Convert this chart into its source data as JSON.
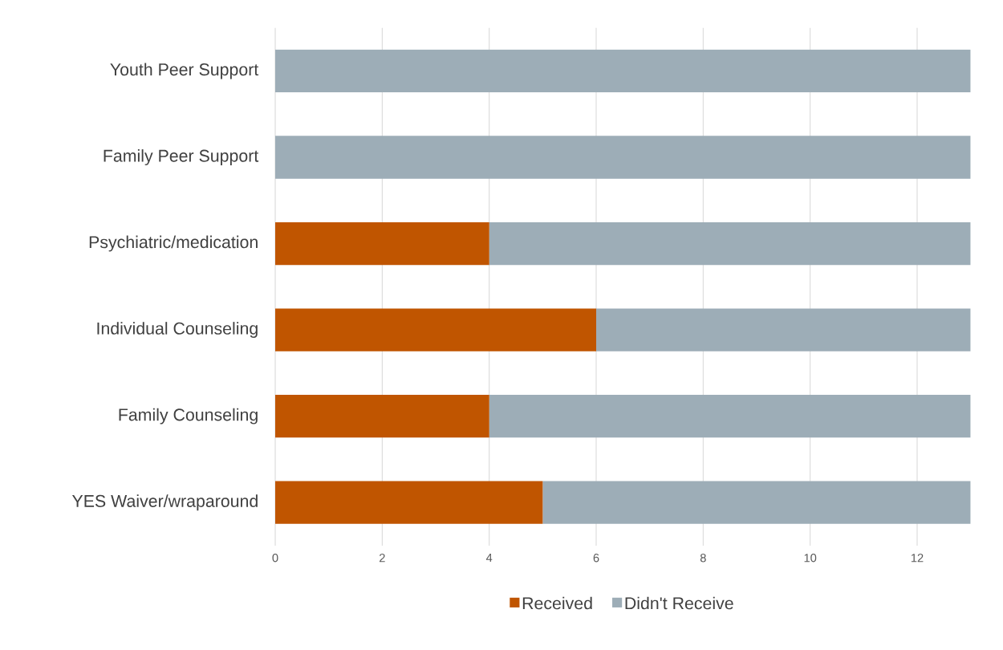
{
  "chart_data": {
    "type": "bar",
    "orientation": "horizontal",
    "stacked": true,
    "categories": [
      "Youth Peer Support",
      "Family Peer Support",
      "Psychiatric/medication",
      "Individual Counseling",
      "Family Counseling",
      "YES Waiver/wraparound"
    ],
    "series": [
      {
        "name": "Received",
        "color": "#c05500",
        "values": [
          0,
          0,
          4,
          6,
          4,
          5
        ]
      },
      {
        "name": "Didn't Receive",
        "color": "#9dadb7",
        "values": [
          13,
          13,
          9,
          7,
          9,
          8
        ]
      }
    ],
    "xlim": [
      0,
      13
    ],
    "xticks": [
      0,
      2,
      4,
      6,
      8,
      10,
      12
    ],
    "grid": "x",
    "legend": "bottom"
  }
}
